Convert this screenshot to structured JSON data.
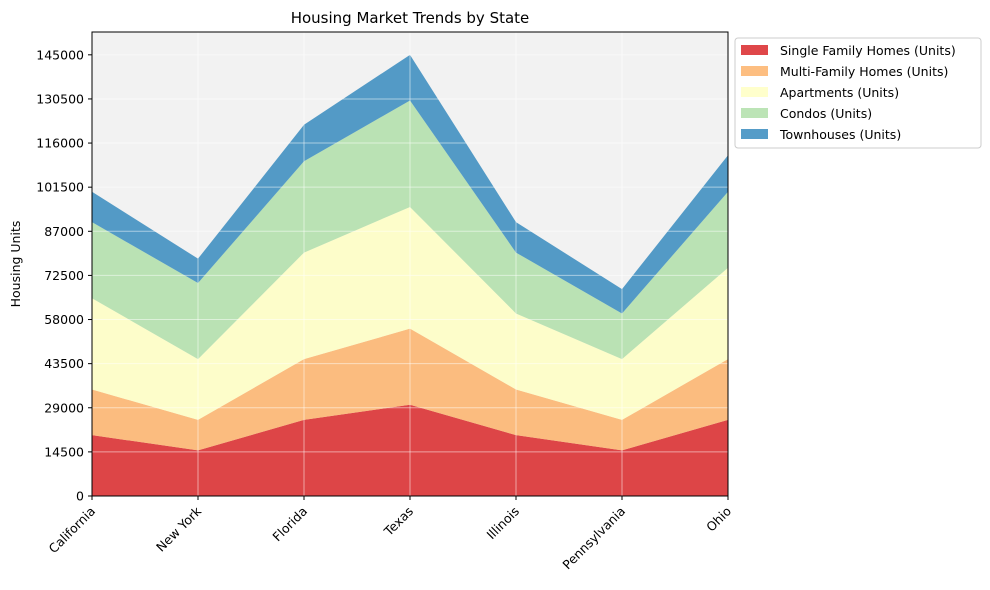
{
  "chart_data": {
    "type": "area",
    "stacked": true,
    "title": "Housing Market Trends by State",
    "xlabel": "",
    "ylabel": "Housing Units",
    "categories": [
      "California",
      "New York",
      "Florida",
      "Texas",
      "Illinois",
      "Pennsylvania",
      "Ohio"
    ],
    "ylim": [
      0,
      152500
    ],
    "yticks": [
      0,
      14500,
      29000,
      43500,
      58000,
      72500,
      87000,
      101500,
      116000,
      130500,
      145000
    ],
    "grid": true,
    "background": "#f2f2f2",
    "legend_position": "outside-top-right",
    "series": [
      {
        "name": "Single Family Homes (Units)",
        "color": "#d7191c",
        "values": [
          20000,
          15000,
          25000,
          30000,
          20000,
          15000,
          25000
        ]
      },
      {
        "name": "Multi-Family Homes (Units)",
        "color": "#fdae61",
        "values": [
          15000,
          10000,
          20000,
          25000,
          15000,
          10000,
          20000
        ]
      },
      {
        "name": "Apartments (Units)",
        "color": "#ffffbf",
        "values": [
          30000,
          20000,
          35000,
          40000,
          25000,
          20000,
          30000
        ]
      },
      {
        "name": "Condos (Units)",
        "color": "#abdda4",
        "values": [
          25000,
          25000,
          30000,
          35000,
          20000,
          15000,
          25000
        ]
      },
      {
        "name": "Townhouses (Units)",
        "color": "#2b83ba",
        "values": [
          10000,
          8000,
          12000,
          15000,
          10000,
          8000,
          12000
        ]
      }
    ]
  }
}
